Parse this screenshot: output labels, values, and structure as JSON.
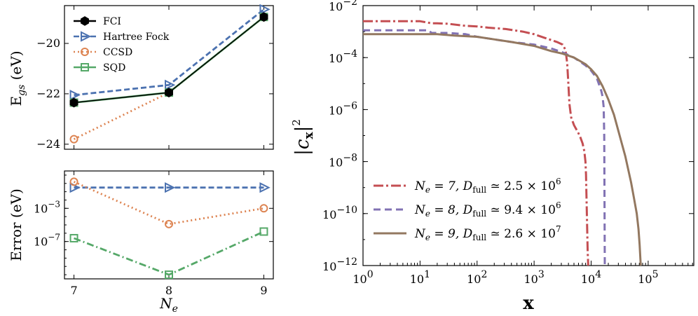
{
  "colors": {
    "fci": "#000000",
    "hf": "#4c72b0",
    "ccsd": "#dd8452",
    "sqd": "#55a868",
    "ne7": "#c44e52",
    "ne8": "#8172b3",
    "ne9": "#937860"
  },
  "chart_data": [
    {
      "id": "energy",
      "type": "line",
      "xlabel": "",
      "ylabel": "E_gs (eV)",
      "ylabel_main": "E",
      "ylabel_sub": "gs",
      "ylabel_unit": " (eV)",
      "x": [
        7,
        8,
        9
      ],
      "xlim": [
        6.9,
        9.1
      ],
      "ylim": [
        -24.2,
        -18.5
      ],
      "yticks": [
        -24,
        -22,
        -20
      ],
      "ytick_labels": [
        "−24",
        "−22",
        "−20"
      ],
      "legend_position": "top-left",
      "series": [
        {
          "name": "FCI",
          "values": [
            -22.35,
            -21.95,
            -18.95
          ],
          "color": "#000000",
          "dash": "",
          "marker": "hexagon"
        },
        {
          "name": "Hartree Fock",
          "values": [
            -22.05,
            -21.65,
            -18.65
          ],
          "color": "#4c72b0",
          "dash": "8,4",
          "marker": "triangle-right"
        },
        {
          "name": "CCSD",
          "values": [
            -23.8,
            -21.95,
            -18.95
          ],
          "color": "#dd8452",
          "dash": "2,4",
          "marker": "circle"
        },
        {
          "name": "SQD",
          "values": [
            -22.35,
            -21.95,
            -18.95
          ],
          "color": "#55a868",
          "dash": "",
          "marker": "square"
        }
      ]
    },
    {
      "id": "error",
      "type": "line",
      "xlabel": "N_e",
      "xlabel_main": "N",
      "xlabel_sub": "e",
      "ylabel": "Error (eV)",
      "x": [
        7,
        8,
        9
      ],
      "xlim": [
        6.9,
        9.1
      ],
      "xticks": [
        7,
        8,
        9
      ],
      "xtick_labels": [
        "7",
        "8",
        "9"
      ],
      "yscale": "log",
      "ylim_log10": [
        -11.5,
        1.5
      ],
      "yticks_log10": [
        -3,
        -7
      ],
      "ytick_labels": [
        {
          "base": "10",
          "exp": "−3"
        },
        {
          "base": "10",
          "exp": "−7"
        }
      ],
      "series": [
        {
          "name": "Hartree Fock",
          "values_log10": [
            -0.5,
            -0.5,
            -0.5
          ],
          "color": "#4c72b0",
          "dash": "8,4",
          "marker": "triangle-right"
        },
        {
          "name": "CCSD",
          "values_log10": [
            0.2,
            -4.9,
            -3.0
          ],
          "color": "#dd8452",
          "dash": "2,4",
          "marker": "circle"
        },
        {
          "name": "SQD",
          "values_log10": [
            -6.6,
            -11.0,
            -5.8
          ],
          "color": "#55a868",
          "dash": "10,4,2,4",
          "marker": "square"
        }
      ]
    },
    {
      "id": "amplitudes",
      "type": "line",
      "xlabel": "x",
      "ylabel": "|c_x|^2",
      "xscale": "log",
      "yscale": "log",
      "xlim_log10": [
        0,
        5.8
      ],
      "ylim_log10": [
        -12,
        -2
      ],
      "xticks_log10": [
        0,
        1,
        2,
        3,
        4,
        5
      ],
      "xtick_labels": [
        {
          "base": "10",
          "exp": "0"
        },
        {
          "base": "10",
          "exp": "1"
        },
        {
          "base": "10",
          "exp": "2"
        },
        {
          "base": "10",
          "exp": "3"
        },
        {
          "base": "10",
          "exp": "4"
        },
        {
          "base": "10",
          "exp": "5"
        }
      ],
      "yticks_log10": [
        -12,
        -10,
        -8,
        -6,
        -4,
        -2
      ],
      "ytick_labels": [
        {
          "base": "10",
          "exp": "−12"
        },
        {
          "base": "10",
          "exp": "−10"
        },
        {
          "base": "10",
          "exp": "−8"
        },
        {
          "base": "10",
          "exp": "−6"
        },
        {
          "base": "10",
          "exp": "−4"
        },
        {
          "base": "10",
          "exp": "−2"
        }
      ],
      "legend_position": "bottom-left",
      "series": [
        {
          "name": "N_e = 7, D_full ≃ 2.5 × 10^6",
          "label_parts": {
            "n": "7",
            "d": "2.5",
            "exp": "6"
          },
          "color": "#c44e52",
          "dash": "14,4,3,4",
          "x_log10": [
            0,
            0.5,
            1.0,
            1.2,
            1.3,
            1.5,
            1.8,
            2.0,
            2.2,
            2.5,
            2.8,
            3.0,
            3.2,
            3.4,
            3.5,
            3.55,
            3.58,
            3.6,
            3.62,
            3.65,
            3.7,
            3.75,
            3.8,
            3.85,
            3.88,
            3.9,
            3.91,
            3.92,
            3.93,
            3.94,
            3.95
          ],
          "y_log10": [
            -2.6,
            -2.6,
            -2.6,
            -2.68,
            -2.68,
            -2.7,
            -2.78,
            -2.8,
            -2.85,
            -2.9,
            -3.0,
            -3.1,
            -3.25,
            -3.4,
            -3.5,
            -3.7,
            -4.2,
            -5.0,
            -5.8,
            -6.3,
            -6.6,
            -6.8,
            -7.0,
            -7.3,
            -7.6,
            -8.0,
            -8.5,
            -9.5,
            -10.5,
            -11.5,
            -12.0
          ]
        },
        {
          "name": "N_e = 8, D_full ≃ 9.4 × 10^6",
          "label_parts": {
            "n": "8",
            "d": "9.4",
            "exp": "6"
          },
          "color": "#8172b3",
          "dash": "10,6",
          "x_log10": [
            0,
            0.5,
            1.0,
            1.15,
            1.2,
            1.5,
            1.8,
            2.0,
            2.3,
            2.6,
            3.0,
            3.3,
            3.5,
            3.7,
            3.9,
            4.0,
            4.1,
            4.15,
            4.18,
            4.2,
            4.22,
            4.23,
            4.235,
            4.24
          ],
          "y_log10": [
            -2.95,
            -2.95,
            -2.95,
            -2.95,
            -3.05,
            -3.05,
            -3.1,
            -3.2,
            -3.3,
            -3.4,
            -3.5,
            -3.65,
            -3.8,
            -4.0,
            -4.3,
            -4.5,
            -4.8,
            -5.1,
            -5.3,
            -5.5,
            -5.9,
            -7.0,
            -9.5,
            -12.0
          ]
        },
        {
          "name": "N_e = 9, D_full ≃ 2.6 × 10^7",
          "label_parts": {
            "n": "9",
            "d": "2.6",
            "exp": "7"
          },
          "color": "#937860",
          "dash": "",
          "x_log10": [
            0,
            0.3,
            0.8,
            1.0,
            1.3,
            1.6,
            2.0,
            2.3,
            2.6,
            3.0,
            3.3,
            3.5,
            3.7,
            3.9,
            4.0,
            4.1,
            4.2,
            4.3,
            4.4,
            4.5,
            4.6,
            4.7,
            4.75,
            4.8,
            4.83,
            4.85,
            4.86,
            4.87
          ],
          "y_log10": [
            -3.1,
            -3.1,
            -3.1,
            -3.1,
            -3.1,
            -3.15,
            -3.2,
            -3.3,
            -3.4,
            -3.55,
            -3.75,
            -3.85,
            -4.0,
            -4.25,
            -4.45,
            -4.7,
            -5.1,
            -5.6,
            -6.2,
            -7.0,
            -7.8,
            -8.8,
            -9.4,
            -10.0,
            -10.6,
            -11.2,
            -11.6,
            -12.0
          ]
        }
      ]
    }
  ]
}
